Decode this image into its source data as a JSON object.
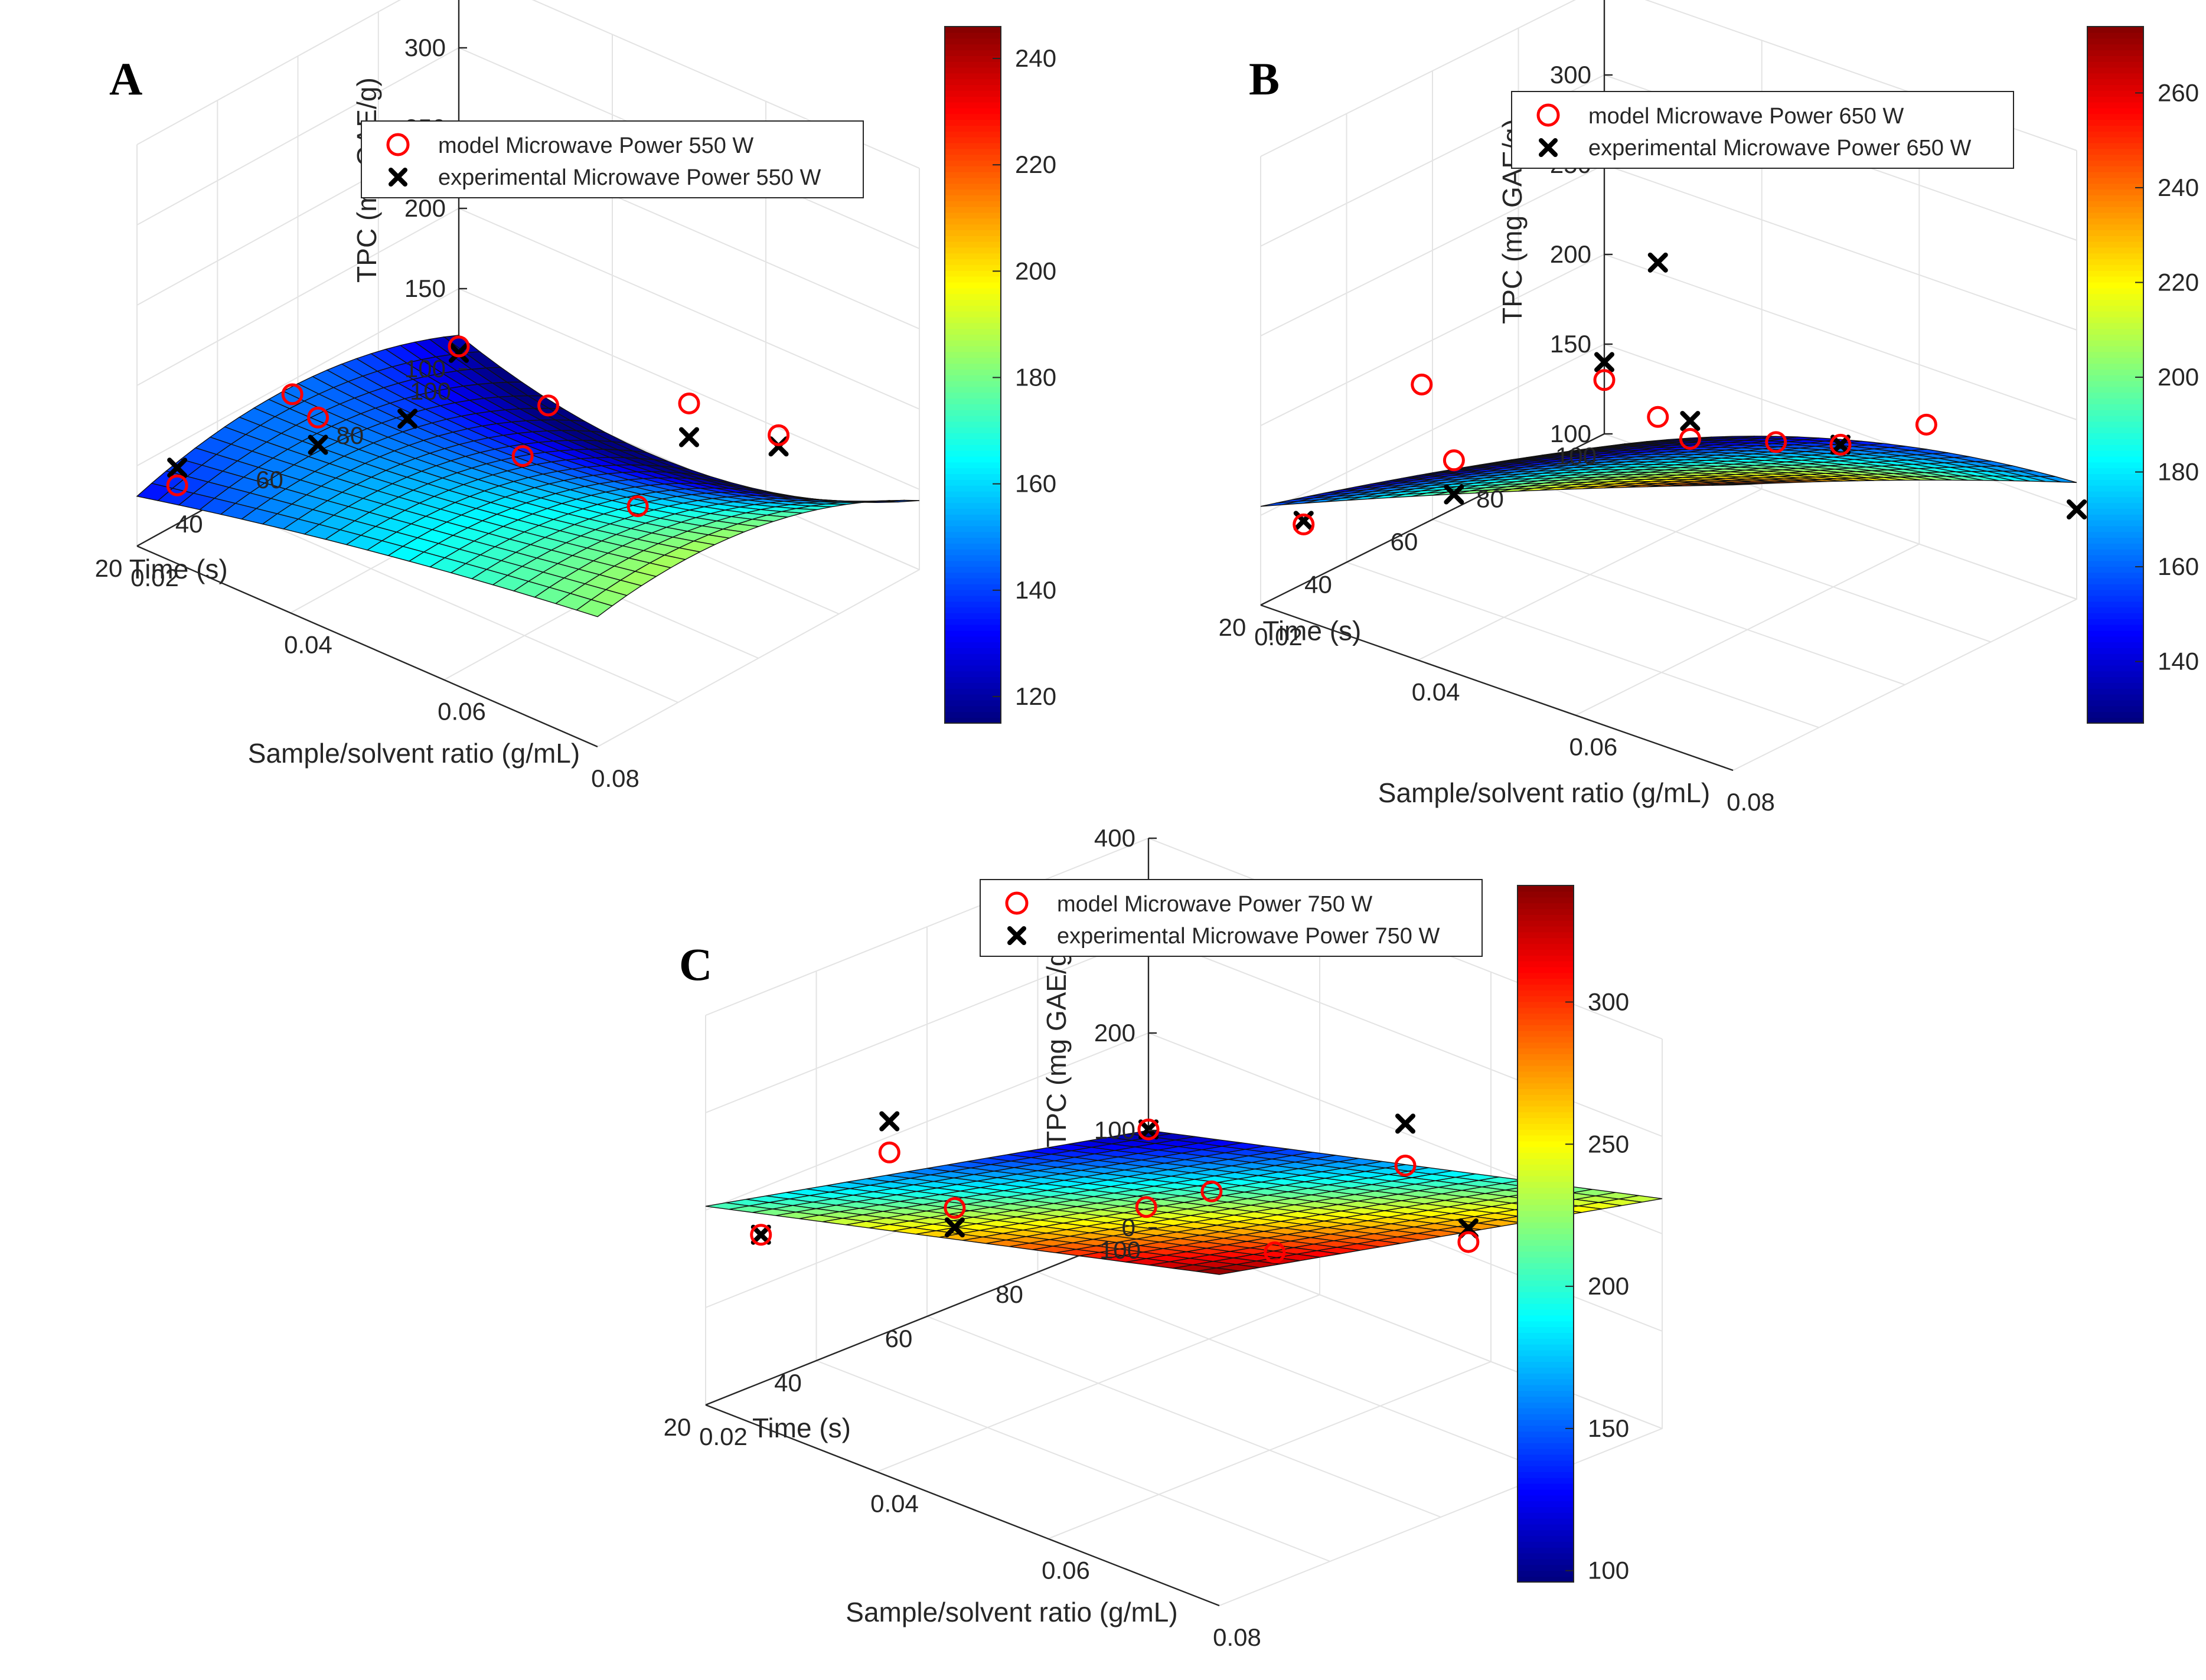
{
  "chart_data": [
    {
      "panel": "A",
      "type": "surface3d",
      "legend": [
        "model Microwave Power 550 W",
        "experimental Microwave Power 550 W"
      ],
      "xlabel": "Sample/solvent ratio (g/mL)",
      "ylabel": "Time (s)",
      "zlabel": "TPC (mg GAE/g)",
      "xlim": [
        0.02,
        0.08
      ],
      "xticks": [
        "0.02",
        "0.04",
        "0.06",
        "0.08"
      ],
      "ylim": [
        20,
        100
      ],
      "yticks": [
        "20",
        "40",
        "60",
        "80",
        "100"
      ],
      "zlim": [
        100,
        350
      ],
      "zticks": [
        "100",
        "150",
        "200",
        "250",
        "300",
        "350"
      ],
      "colorbar": {
        "min": 115,
        "max": 246,
        "ticks": [
          "120",
          "140",
          "160",
          "180",
          "200",
          "220",
          "240"
        ]
      },
      "surface_fit": {
        "coef": [
          150,
          18,
          30,
          14,
          -20,
          7,
          -18
        ]
      },
      "model": [
        {
          "x": 0.02,
          "y": 90,
          "z": 124
        },
        {
          "x": 0.02,
          "y": 55,
          "z": 118
        },
        {
          "x": 0.02,
          "y": 20,
          "z": 114
        },
        {
          "x": 0.035,
          "y": 90,
          "z": 212
        },
        {
          "x": 0.05,
          "y": 55,
          "z": 188
        },
        {
          "x": 0.05,
          "y": 20,
          "z": 141
        },
        {
          "x": 0.08,
          "y": 90,
          "z": 236
        },
        {
          "x": 0.065,
          "y": 90,
          "z": 236
        },
        {
          "x": 0.08,
          "y": 55,
          "z": 232
        }
      ],
      "experimental": [
        {
          "x": 0.02,
          "y": 90,
          "z": 135
        },
        {
          "x": 0.02,
          "y": 55,
          "z": 101
        },
        {
          "x": 0.02,
          "y": 20,
          "z": 110
        },
        {
          "x": 0.05,
          "y": 90,
          "z": 228
        },
        {
          "x": 0.05,
          "y": 20,
          "z": 120
        },
        {
          "x": 0.08,
          "y": 55,
          "z": 225
        }
      ]
    },
    {
      "panel": "B",
      "type": "surface3d",
      "legend": [
        "model Microwave Power 650 W",
        "experimental Microwave Power 650 W"
      ],
      "xlabel": "Sample/solvent ratio (g/mL)",
      "ylabel": "Time (s)",
      "zlabel": "TPC (mg GAE/g)",
      "xlim": [
        0.02,
        0.08
      ],
      "xticks": [
        "0.02",
        "0.04",
        "0.06",
        "0.08"
      ],
      "ylim": [
        20,
        100
      ],
      "yticks": [
        "20",
        "40",
        "60",
        "80",
        "100"
      ],
      "zlim": [
        100,
        350
      ],
      "zticks": [
        "100",
        "150",
        "200",
        "250",
        "300",
        "350"
      ],
      "colorbar": {
        "min": 127,
        "max": 274,
        "ticks": [
          "140",
          "160",
          "180",
          "200",
          "220",
          "240",
          "260"
        ]
      },
      "surface_fit": {
        "coef": [
          178,
          44,
          33,
          -8,
          -2,
          8,
          6
        ]
      },
      "model": [
        {
          "x": 0.02,
          "y": 90,
          "z": 133
        },
        {
          "x": 0.02,
          "y": 55,
          "z": 127
        },
        {
          "x": 0.02,
          "y": 20,
          "z": 130
        },
        {
          "x": 0.035,
          "y": 90,
          "z": 234
        },
        {
          "x": 0.05,
          "y": 55,
          "z": 185
        },
        {
          "x": 0.05,
          "y": 20,
          "z": 140
        },
        {
          "x": 0.08,
          "y": 90,
          "z": 271
        },
        {
          "x": 0.065,
          "y": 90,
          "z": 262
        },
        {
          "x": 0.08,
          "y": 55,
          "z": 239
        }
      ],
      "experimental": [
        {
          "x": 0.02,
          "y": 90,
          "z": 135
        },
        {
          "x": 0.02,
          "y": 55,
          "z": 108
        },
        {
          "x": 0.02,
          "y": 20,
          "z": 140
        },
        {
          "x": 0.05,
          "y": 55,
          "z": 195
        },
        {
          "x": 0.05,
          "y": 20,
          "z": 140
        },
        {
          "x": 0.065,
          "y": 90,
          "z": 348
        },
        {
          "x": 0.08,
          "y": 20,
          "z": 150
        }
      ]
    },
    {
      "panel": "C",
      "type": "surface3d",
      "legend": [
        "model Microwave Power 750 W",
        "experimental Microwave Power 750 W"
      ],
      "xlabel": "Sample/solvent ratio (g/mL)",
      "ylabel": "Time (s)",
      "zlabel": "TPC (mg GAE/g)",
      "xlim": [
        0.02,
        0.08
      ],
      "xticks": [
        "0.02",
        "0.04",
        "0.06",
        "0.08"
      ],
      "ylim": [
        20,
        100
      ],
      "yticks": [
        "20",
        "40",
        "60",
        "80",
        "100"
      ],
      "zlim": [
        0,
        400
      ],
      "zticks": [
        "0",
        "100",
        "200",
        "300",
        "400"
      ],
      "colorbar": {
        "min": 96,
        "max": 341,
        "ticks": [
          "100",
          "150",
          "200",
          "250",
          "300"
        ]
      },
      "surface_fit": {
        "coef": [
          220,
          68,
          52,
          0,
          0,
          0,
          0
        ]
      },
      "model": [
        {
          "x": 0.02,
          "y": 90,
          "z": 152
        },
        {
          "x": 0.02,
          "y": 55,
          "z": 100
        },
        {
          "x": 0.02,
          "y": 20,
          "z": 101
        },
        {
          "x": 0.035,
          "y": 90,
          "z": 288
        },
        {
          "x": 0.05,
          "y": 55,
          "z": 220
        },
        {
          "x": 0.05,
          "y": 20,
          "z": 167
        },
        {
          "x": 0.08,
          "y": 90,
          "z": 340
        },
        {
          "x": 0.065,
          "y": 90,
          "z": 335
        },
        {
          "x": 0.08,
          "y": 55,
          "z": 271
        }
      ],
      "experimental": [
        {
          "x": 0.02,
          "y": 90,
          "z": 152
        },
        {
          "x": 0.02,
          "y": 55,
          "z": 80
        },
        {
          "x": 0.02,
          "y": 20,
          "z": 101
        },
        {
          "x": 0.035,
          "y": 90,
          "z": 320
        },
        {
          "x": 0.05,
          "y": 20,
          "z": 210
        },
        {
          "x": 0.08,
          "y": 55,
          "z": 285
        }
      ]
    }
  ]
}
